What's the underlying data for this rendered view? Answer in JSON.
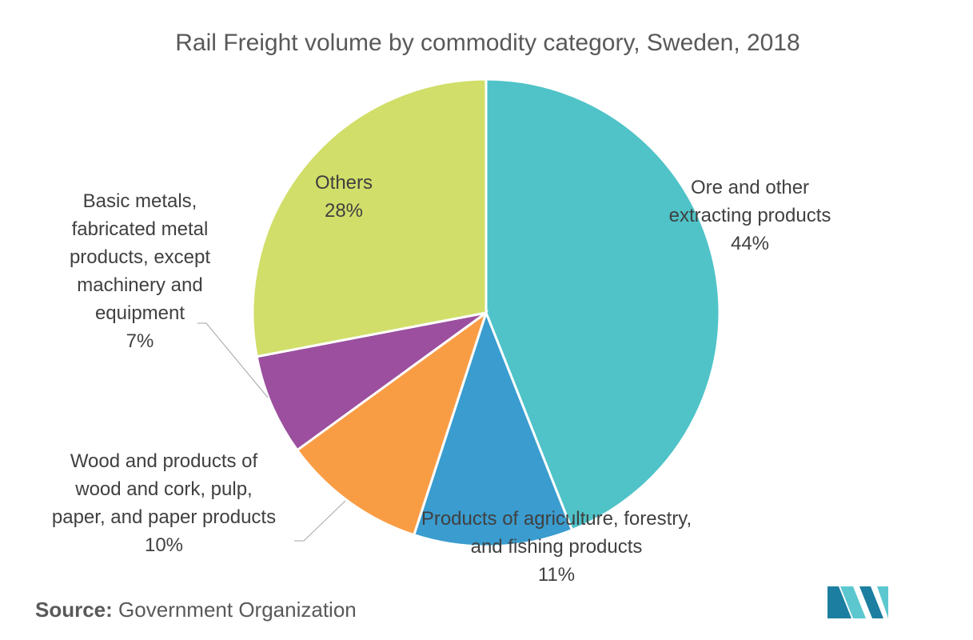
{
  "source": {
    "label": "Source:",
    "value": "Government Organization"
  },
  "logo": {
    "icon": "mordor-intelligence-logo-icon",
    "colors": [
      "#1c7ea0",
      "#5cc7cf"
    ]
  },
  "chart_data": {
    "type": "pie",
    "title": "Rail Freight volume by commodity category, Sweden, 2018",
    "unit": "%",
    "start_angle_deg": 0,
    "direction": "clockwise",
    "slices": [
      {
        "name": "Ore and other extracting products",
        "label_lines": [
          "Ore and other",
          "extracting products"
        ],
        "value": 44,
        "value_label": "44%",
        "color": "#4fc3c8",
        "leader_line": false
      },
      {
        "name": "Products of agriculture, forestry, and fishing products",
        "label_lines": [
          "Products of agriculture, forestry,",
          "and fishing products"
        ],
        "value": 11,
        "value_label": "11%",
        "color": "#3a9ccf",
        "leader_line": false
      },
      {
        "name": "Wood and products of wood and cork, pulp, paper, and paper products",
        "label_lines": [
          "Wood and products of",
          "wood and cork, pulp,",
          "paper, and paper products"
        ],
        "value": 10,
        "value_label": "10%",
        "color": "#f99d45",
        "leader_line": true
      },
      {
        "name": "Basic metals, fabricated metal products, except machinery and equipment",
        "label_lines": [
          "Basic metals,",
          "fabricated metal",
          "products, except",
          "machinery and",
          "equipment"
        ],
        "value": 7,
        "value_label": "7%",
        "color": "#9b4f9e",
        "leader_line": true
      },
      {
        "name": "Others",
        "label_lines": [
          "Others"
        ],
        "value": 28,
        "value_label": "28%",
        "color": "#d1de69",
        "leader_line": false
      }
    ]
  }
}
